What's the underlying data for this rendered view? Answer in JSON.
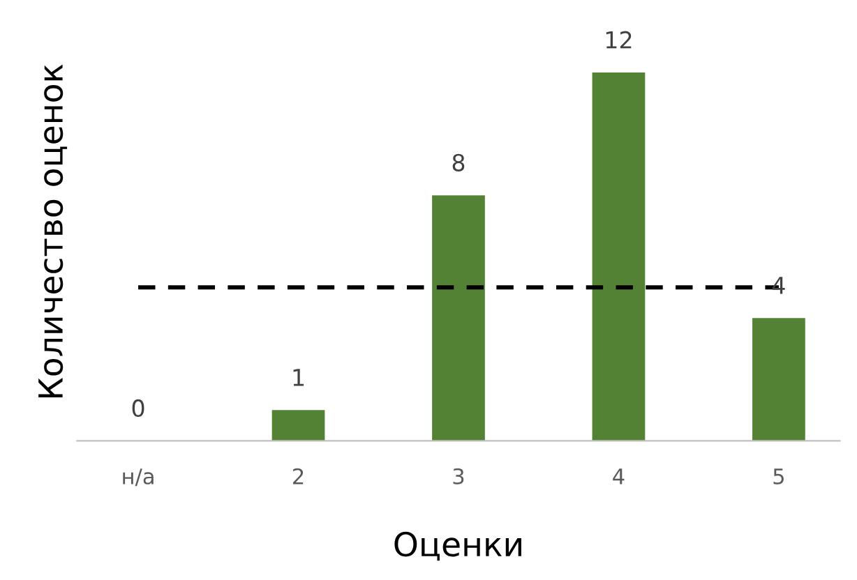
{
  "chart_data": {
    "type": "bar",
    "xlabel": "Оценки",
    "ylabel": "Количество оценок",
    "categories": [
      "н/а",
      "2",
      "3",
      "4",
      "5"
    ],
    "values": [
      0,
      1,
      8,
      12,
      4
    ],
    "color": "#548235",
    "data_labels": true,
    "ref_lines": [
      {
        "axis": "y",
        "value": 5,
        "color": "#000000",
        "line_style": "dashed"
      }
    ],
    "grid": false,
    "legend": false
  }
}
